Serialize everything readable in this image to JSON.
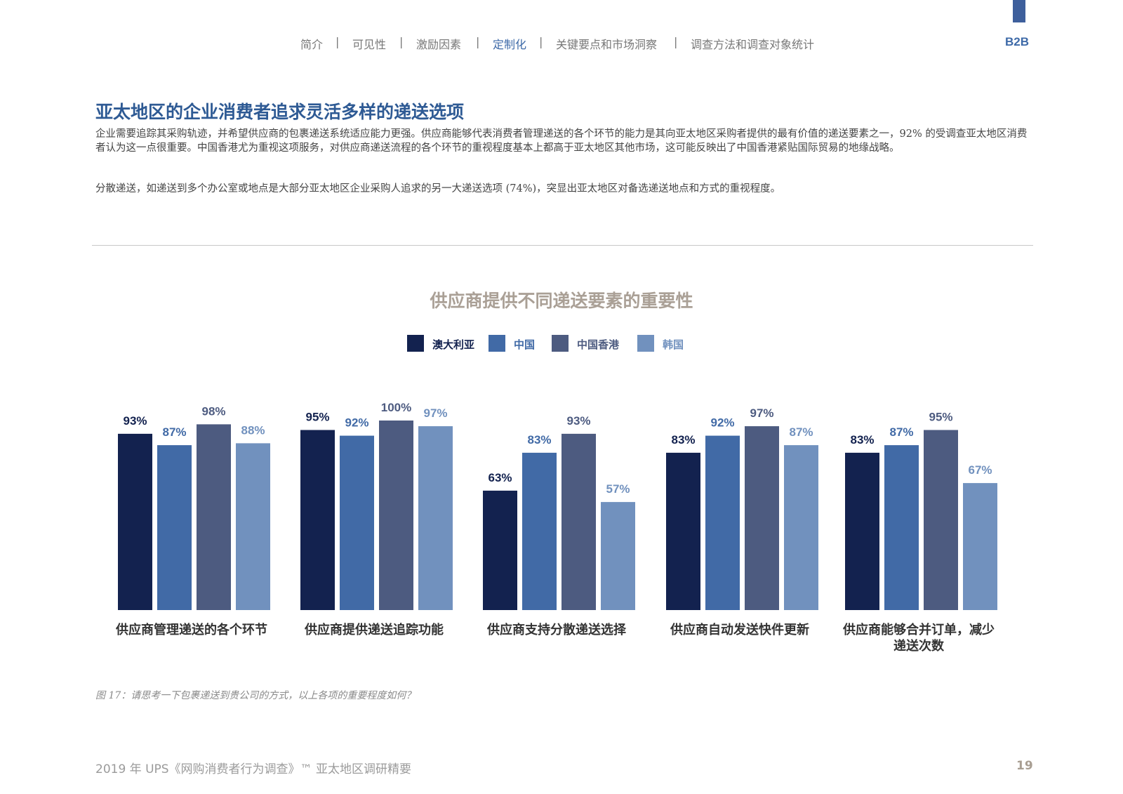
{
  "nav": {
    "items": [
      {
        "label": "简介",
        "active": false
      },
      {
        "label": "可见性",
        "active": false
      },
      {
        "label": "激励因素",
        "active": false
      },
      {
        "label": "定制化",
        "active": true
      },
      {
        "label": "关键要点和市场洞察",
        "active": false
      },
      {
        "label": "调查方法和调查对象统计",
        "active": false
      }
    ],
    "separator": "|",
    "section_tag": "B2B"
  },
  "headline": "亚太地区的企业消费者追求灵活多样的递送选项",
  "paragraphs": [
    "企业需要追踪其采购轨迹，并希望供应商的包裹递送系统适应能力更强。供应商能够代表消费者管理递送的各个环节的能力是其向亚太地区采购者提供的最有价值的递送要素之一，92% 的受调查亚太地区消费者认为这一点很重要。中国香港尤为重视这项服务，对供应商递送流程的各个环节的重视程度基本上都高于亚太地区其他市场，这可能反映出了中国香港紧贴国际贸易的地缘战略。",
    "分散递送，如递送到多个办公室或地点是大部分亚太地区企业采购人追求的另一大递送选项 (74%)，突显出亚太地区对备选递送地点和方式的重视程度。"
  ],
  "chart_data": {
    "type": "bar",
    "title": "供应商提供不同递送要素的重要性",
    "categories": [
      "供应商管理递送的各个环节",
      "供应商提供递送追踪功能",
      "供应商支持分散递送选择",
      "供应商自动发送快件更新",
      "供应商能够合并订单，减少递送次数"
    ],
    "category_lines": [
      [
        "供应商管理递送的各个环节"
      ],
      [
        "供应商提供递送追踪功能"
      ],
      [
        "供应商支持分散递送选择"
      ],
      [
        "供应商自动发送快件更新"
      ],
      [
        "供应商能够合并订单，减少",
        "递送次数"
      ]
    ],
    "series": [
      {
        "name": "澳大利亚",
        "color": "#13224f",
        "values": [
          93,
          95,
          63,
          83,
          83
        ]
      },
      {
        "name": "中国",
        "color": "#416aa6",
        "values": [
          87,
          92,
          83,
          92,
          87
        ]
      },
      {
        "name": "中国香港",
        "color": "#4d5b80",
        "values": [
          98,
          100,
          93,
          97,
          95
        ]
      },
      {
        "name": "韩国",
        "color": "#7191be",
        "values": [
          88,
          97,
          57,
          87,
          67
        ]
      }
    ],
    "value_suffix": "%",
    "ylim": [
      0,
      100
    ],
    "legend_position": "top-center",
    "grid": false
  },
  "footnote": "图 17：请思考一下包裹递送到贵公司的方式，以上各项的重要程度如何？",
  "footer": {
    "title": "2019 年 UPS《网购消费者行为调查》™ 亚太地区调研精要",
    "page": "19"
  }
}
